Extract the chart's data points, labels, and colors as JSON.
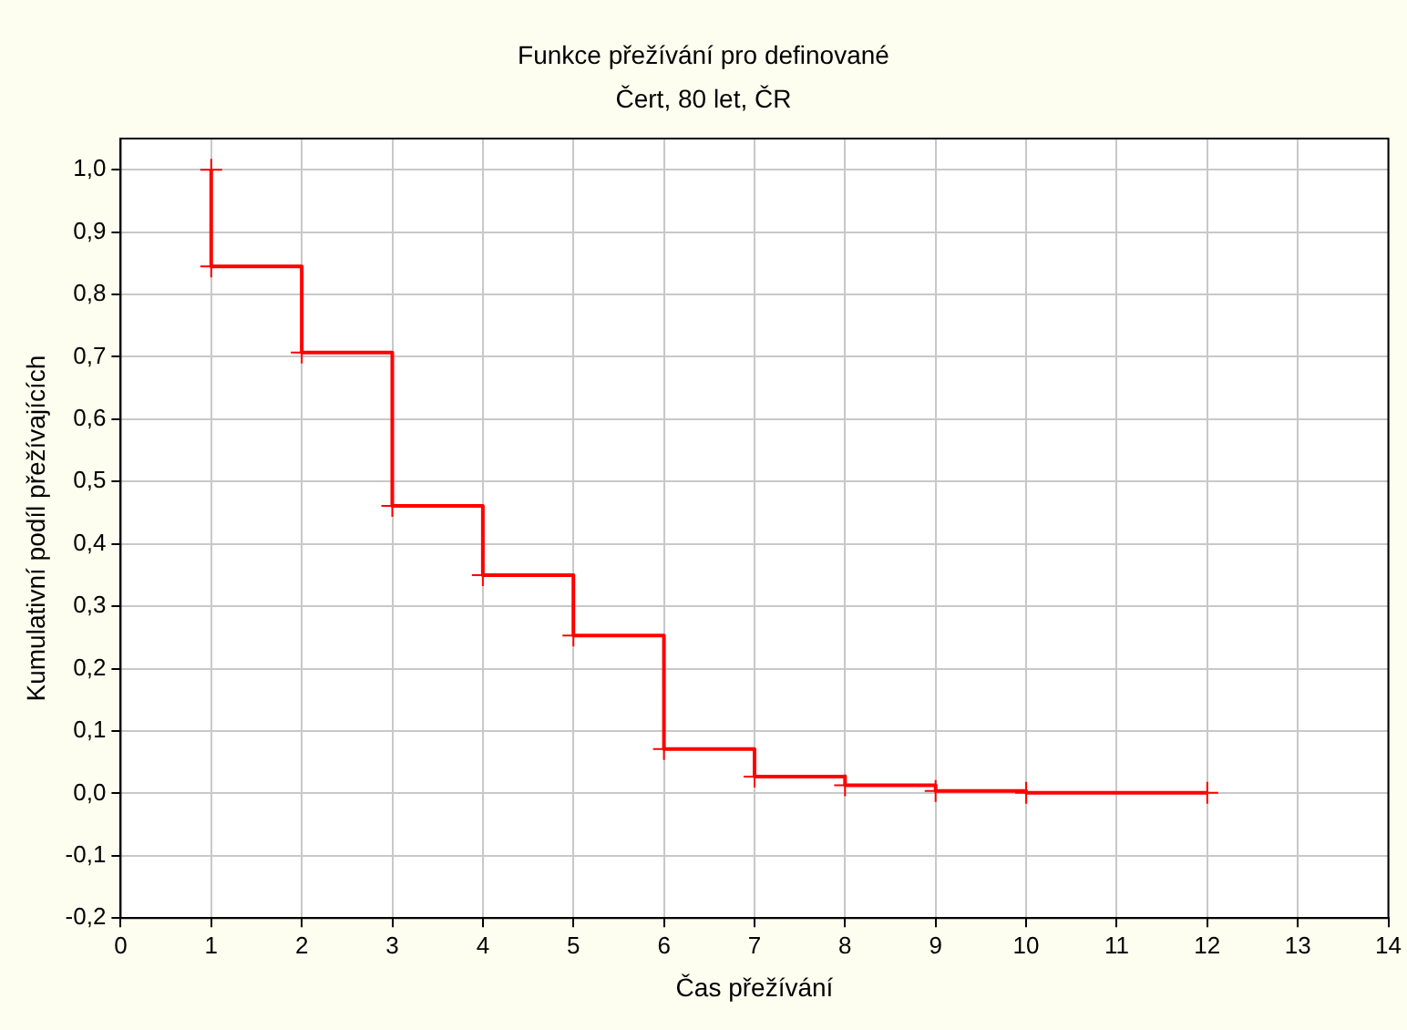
{
  "chart_data": {
    "type": "step",
    "title": "Funkce přežívání pro definované",
    "subtitle": "Čert, 80 let, ČR",
    "xlabel": "Čas přežívání",
    "ylabel": "Kumulativní podíl přežívajících",
    "x": [
      1,
      1,
      2,
      3,
      4,
      5,
      6,
      7,
      8,
      9,
      10,
      12
    ],
    "series": [
      {
        "color": "#ff0000",
        "values": [
          1.0,
          0.845,
          0.707,
          0.461,
          0.35,
          0.253,
          0.071,
          0.027,
          0.013,
          0.004,
          0.001,
          0.001
        ]
      }
    ],
    "xlim": [
      0,
      14
    ],
    "xticks": [
      0,
      1,
      2,
      3,
      4,
      5,
      6,
      7,
      8,
      9,
      10,
      11,
      12,
      13,
      14
    ],
    "ylim": [
      -0.2,
      1.05
    ],
    "yticks": [
      {
        "value": -0.2,
        "label": "-0,2"
      },
      {
        "value": -0.1,
        "label": "-0,1"
      },
      {
        "value": 0,
        "label": "0,0"
      },
      {
        "value": 0.1,
        "label": "0,1"
      },
      {
        "value": 0.2,
        "label": "0,2"
      },
      {
        "value": 0.3,
        "label": "0,3"
      },
      {
        "value": 0.4,
        "label": "0,4"
      },
      {
        "value": 0.5,
        "label": "0,5"
      },
      {
        "value": 0.6,
        "label": "0,6"
      },
      {
        "value": 0.7,
        "label": "0,7"
      },
      {
        "value": 0.8,
        "label": "0,8"
      },
      {
        "value": 0.9,
        "label": "0,9"
      },
      {
        "value": 1.0,
        "label": "1,0"
      }
    ],
    "grid": true,
    "legend": false,
    "marker": "cross",
    "line_style": "solid"
  }
}
